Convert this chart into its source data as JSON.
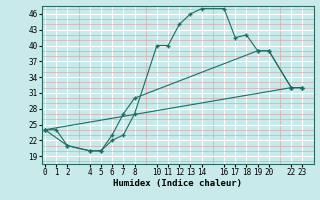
{
  "title": "",
  "xlabel": "Humidex (Indice chaleur)",
  "ylabel": "",
  "bg_color": "#c8eaea",
  "major_grid_color": "#ffffff",
  "minor_grid_color": "#d4a0a0",
  "line_color": "#1a6e62",
  "yticks": [
    19,
    22,
    25,
    28,
    31,
    34,
    37,
    40,
    43,
    46
  ],
  "xtick_labels": [
    "0",
    "1",
    "2",
    "4",
    "5",
    "6",
    "7",
    "8",
    "10",
    "11",
    "12",
    "13",
    "14",
    "16",
    "17",
    "18",
    "19",
    "20",
    "22",
    "23"
  ],
  "xtick_vals": [
    0,
    1,
    2,
    4,
    5,
    6,
    7,
    8,
    10,
    11,
    12,
    13,
    14,
    16,
    17,
    18,
    19,
    20,
    22,
    23
  ],
  "xlim": [
    -0.3,
    24.0
  ],
  "ylim": [
    17.5,
    47.5
  ],
  "line1_x": [
    0,
    1,
    2,
    4,
    5,
    6,
    7,
    8,
    10,
    11,
    12,
    13,
    14,
    16,
    17,
    18,
    19,
    20,
    22,
    23
  ],
  "line1_y": [
    24,
    24,
    21,
    20,
    20,
    22,
    23,
    27,
    40,
    40,
    44,
    46,
    47,
    47,
    41.5,
    42,
    39,
    39,
    32,
    32
  ],
  "line2_x": [
    0,
    2,
    4,
    5,
    6,
    7,
    8,
    19,
    20,
    22,
    23
  ],
  "line2_y": [
    24,
    21,
    20,
    20,
    23,
    27,
    30,
    39,
    39,
    32,
    32
  ],
  "line3_x": [
    0,
    22,
    23
  ],
  "line3_y": [
    24,
    32,
    32
  ]
}
